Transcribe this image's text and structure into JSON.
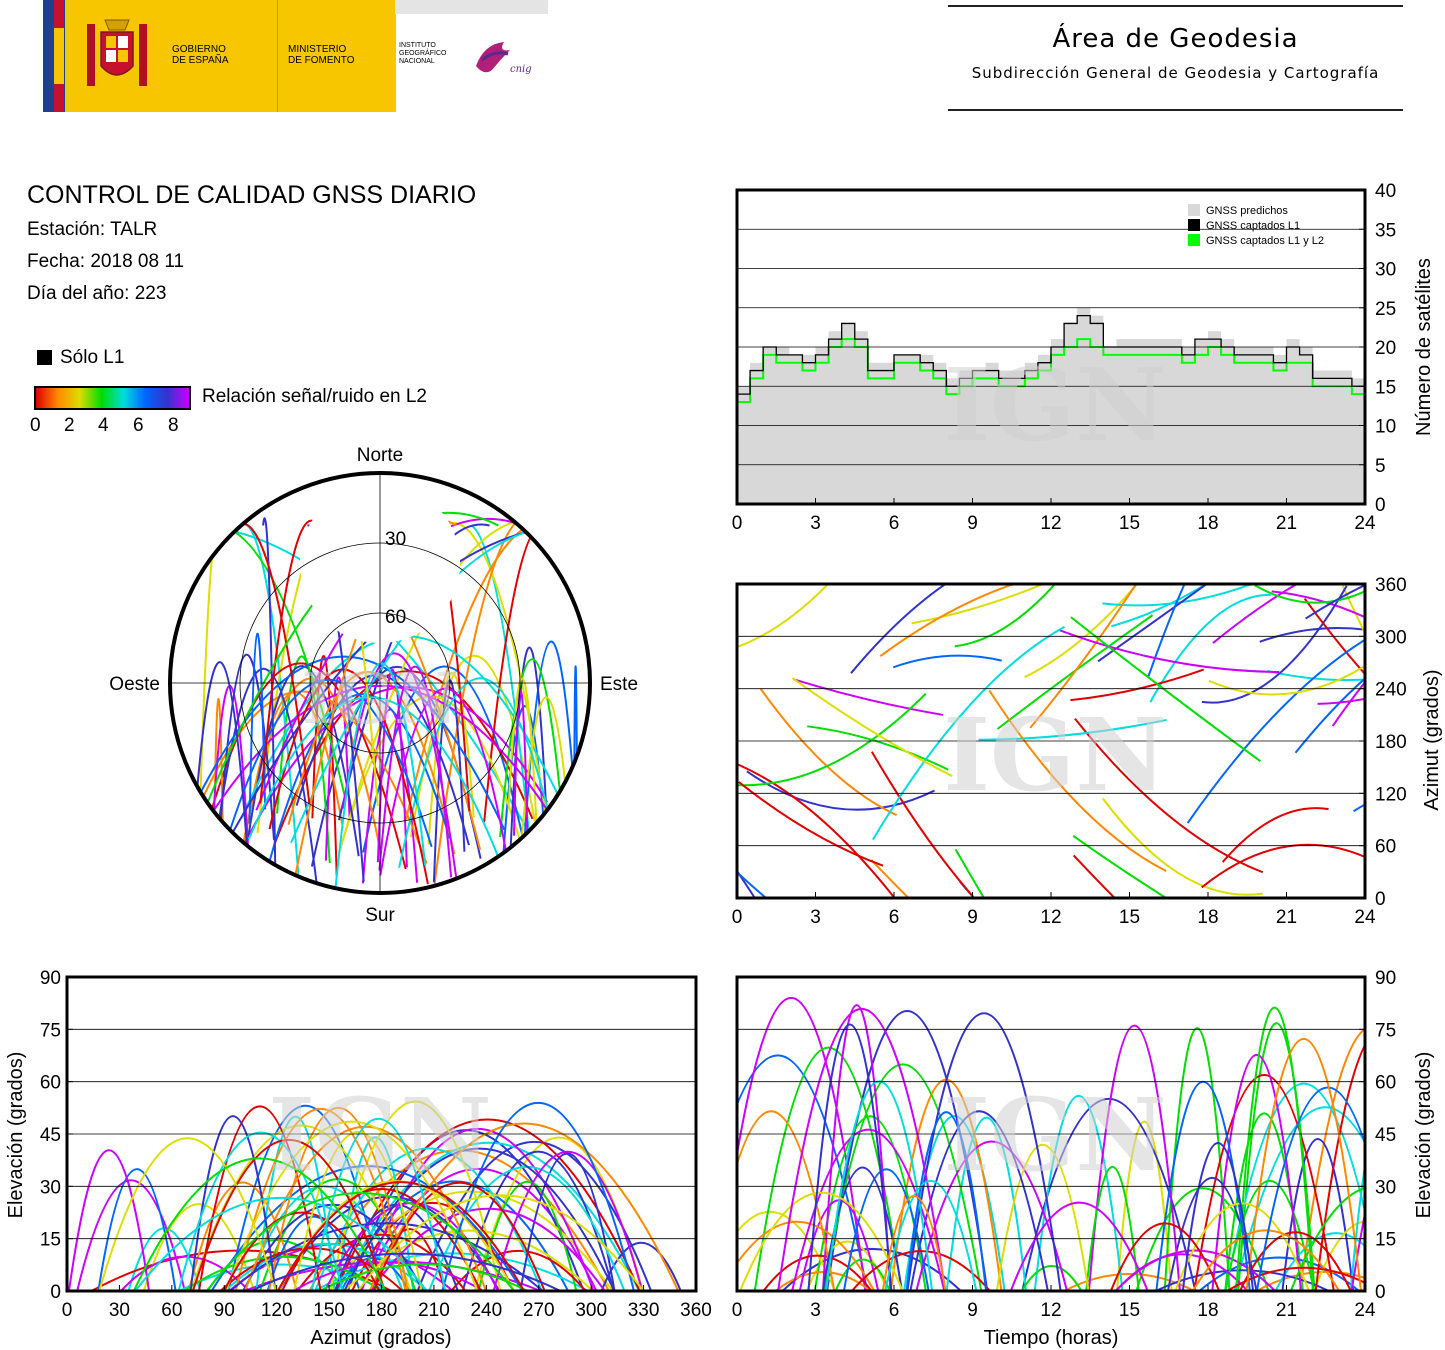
{
  "header": {
    "gov_line1": "GOBIERNO",
    "gov_line2": "DE ESPAÑA",
    "min_line1": "MINISTERIO",
    "min_line2": "DE FOMENTO",
    "ign_line1": "INSTITUTO",
    "ign_line2": "GEOGRÁFICO",
    "ign_line3": "NACIONAL",
    "cnig_logo_text": "cnig",
    "area_title": "Área de Geodesia",
    "area_subtitle": "Subdirección General de Geodesia y Cartografía",
    "colors": {
      "flag_red": "#c8102e",
      "flag_yellow": "#f7c600",
      "blue_band": "#1f3f8f"
    }
  },
  "info": {
    "title": "CONTROL DE CALIDAD GNSS DIARIO",
    "station": "Estación: TALR",
    "date": "Fecha: 2018 08 11",
    "doy": "Día del año: 223"
  },
  "legend": {
    "l1_only": "Sólo L1",
    "snr_label": "Relación señal/ruido en L2",
    "snr_ticks": [
      "0",
      "2",
      "4",
      "6",
      "8"
    ],
    "snr_colors": [
      "#e00000",
      "#ff8800",
      "#dddd00",
      "#00dd00",
      "#00dddd",
      "#0066ff",
      "#3333cc",
      "#cc00ff"
    ]
  },
  "watermark": "IGN",
  "chart_data": [
    {
      "type": "polar",
      "name": "skyplot",
      "direction_labels": {
        "north": "Norte",
        "south": "Sur",
        "west": "Oeste",
        "east": "Este"
      },
      "rings": [
        "30",
        "60"
      ],
      "note": "satellite tracks colored by L2 SNR"
    },
    {
      "type": "area",
      "name": "satellite-count",
      "legend": [
        "GNSS predichos",
        "GNSS captados L1",
        "GNSS captados L1 y L2"
      ],
      "series_colors": [
        "#d8d8d8",
        "#000000",
        "#00ff00"
      ],
      "ylabel": "Número de satélites",
      "ylim": [
        0,
        40
      ],
      "yticks": [
        "0",
        "5",
        "10",
        "15",
        "20",
        "25",
        "30",
        "35",
        "40"
      ],
      "xlim": [
        0,
        24
      ],
      "xticks": [
        "0",
        "3",
        "6",
        "9",
        "12",
        "15",
        "18",
        "21",
        "24"
      ],
      "x": [
        0,
        0.5,
        1,
        1.5,
        2,
        2.5,
        3,
        3.5,
        4,
        4.5,
        5,
        5.5,
        6,
        6.5,
        7,
        7.5,
        8,
        8.5,
        9,
        9.5,
        10,
        10.5,
        11,
        11.5,
        12,
        12.5,
        13,
        13.5,
        14,
        14.5,
        15,
        15.5,
        16,
        16.5,
        17,
        17.5,
        18,
        18.5,
        19,
        19.5,
        20,
        20.5,
        21,
        21.5,
        22,
        22.5,
        23,
        23.5,
        24
      ],
      "predicted": [
        15,
        18,
        20,
        20,
        19,
        19,
        20,
        22,
        23,
        22,
        18,
        18,
        19,
        19,
        19,
        18,
        16,
        17,
        17,
        18,
        17,
        17,
        18,
        19,
        21,
        23,
        25,
        24,
        20,
        21,
        21,
        21,
        21,
        21,
        20,
        21,
        22,
        21,
        20,
        20,
        20,
        19,
        21,
        20,
        17,
        17,
        17,
        16,
        15
      ],
      "captured_l1": [
        14,
        17,
        20,
        19,
        19,
        18,
        19,
        21,
        23,
        21,
        17,
        17,
        19,
        19,
        18,
        17,
        15,
        16,
        17,
        17,
        16,
        16,
        17,
        18,
        20,
        23,
        24,
        23,
        20,
        20,
        20,
        20,
        20,
        20,
        19,
        21,
        21,
        20,
        19,
        19,
        19,
        18,
        20,
        19,
        16,
        16,
        16,
        15,
        14
      ],
      "captured_l1_l2": [
        13,
        16,
        19,
        18,
        18,
        17,
        18,
        20,
        21,
        20,
        16,
        16,
        18,
        18,
        17,
        16,
        14,
        15,
        16,
        16,
        15,
        15,
        16,
        17,
        19,
        20,
        21,
        20,
        19,
        19,
        19,
        19,
        19,
        19,
        18,
        19,
        20,
        19,
        18,
        18,
        18,
        17,
        18,
        18,
        15,
        15,
        15,
        14,
        13
      ]
    },
    {
      "type": "scatter",
      "name": "azimuth-vs-time",
      "ylabel": "Azimut (grados)",
      "ylim": [
        0,
        360
      ],
      "yticks": [
        "0",
        "60",
        "120",
        "180",
        "240",
        "300",
        "360"
      ],
      "xlim": [
        0,
        24
      ],
      "xticks": [
        "0",
        "3",
        "6",
        "9",
        "12",
        "15",
        "18",
        "21",
        "24"
      ],
      "note": "satellite azimuth tracks colored by L2 SNR"
    },
    {
      "type": "scatter",
      "name": "elevation-vs-azimuth",
      "xlabel": "Azimut (grados)",
      "ylabel": "Elevación (grados)",
      "xlim": [
        0,
        360
      ],
      "ylim": [
        0,
        90
      ],
      "xticks": [
        "0",
        "30",
        "60",
        "90",
        "120",
        "150",
        "180",
        "210",
        "240",
        "270",
        "300",
        "330",
        "360"
      ],
      "yticks": [
        "0",
        "15",
        "30",
        "45",
        "60",
        "75",
        "90"
      ],
      "note": "satellite elevation tracks colored by L2 SNR"
    },
    {
      "type": "line",
      "name": "elevation-vs-time",
      "xlabel": "Tiempo (horas)",
      "ylabel": "Elevación (grados)",
      "xlim": [
        0,
        24
      ],
      "ylim": [
        0,
        90
      ],
      "xticks": [
        "0",
        "3",
        "6",
        "9",
        "12",
        "15",
        "18",
        "21",
        "24"
      ],
      "yticks": [
        "0",
        "15",
        "30",
        "45",
        "60",
        "75",
        "90"
      ],
      "note": "satellite elevation arcs colored by L2 SNR"
    }
  ]
}
